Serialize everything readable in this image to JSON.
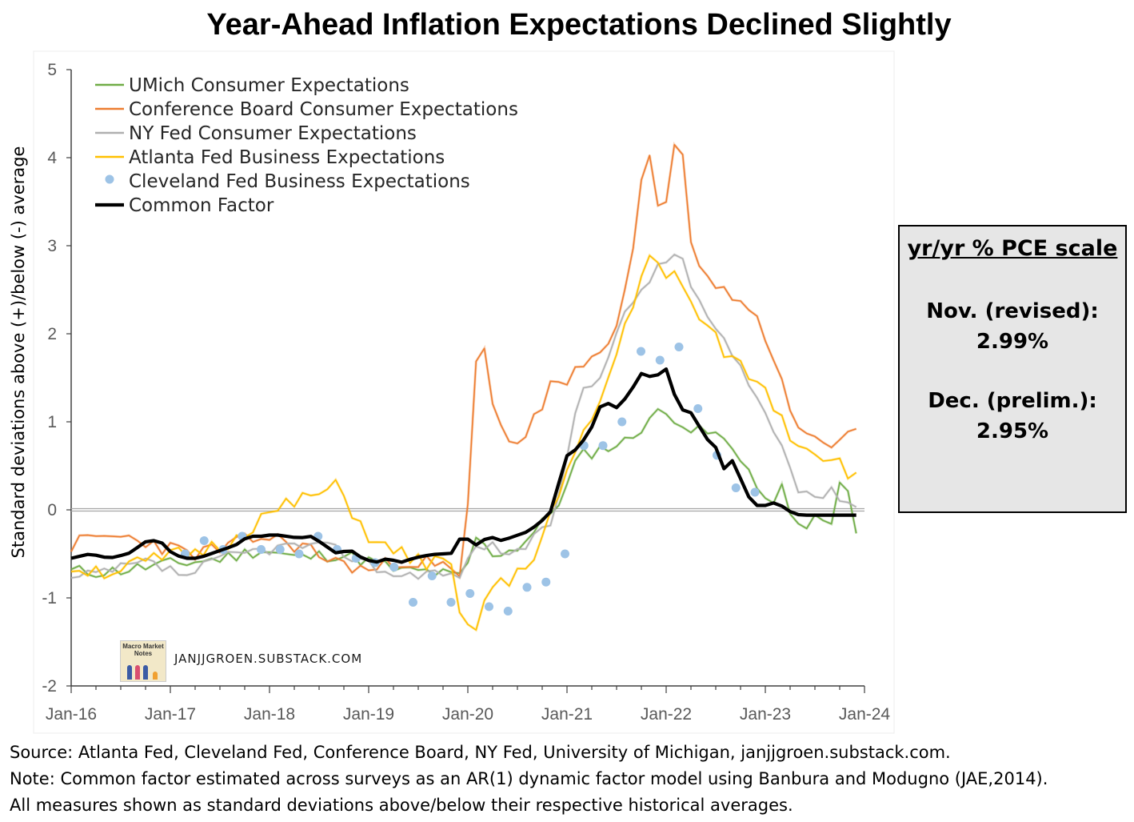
{
  "title": "Year-Ahead Inflation Expectations Declined Slightly",
  "ylabel": "Standard deviations above (+)/below (-) average",
  "info_box": {
    "heading": "yr/yr % PCE scale",
    "label1": "Nov. (revised):",
    "value1": "2.99%",
    "label2": "Dec. (prelim.):",
    "value2": "2.95%"
  },
  "source_lines": [
    "Source: Atlanta Fed, Cleveland Fed, Conference Board, NY Fed, University of Michigan, janjjgroen.substack.com.",
    "Note: Common factor estimated  across surveys as an AR(1) dynamic factor model using Banbura and Modugno (JAE,2014).",
    "All measures shown as standard deviations above/below their respective historical averages."
  ],
  "watermark": "JANJJGROEN.SUBSTACK.COM",
  "logo_text": "Macro Market Notes",
  "chart_data": {
    "type": "line",
    "title": "Year-Ahead Inflation Expectations Declined Slightly",
    "ylabel": "Standard deviations above (+)/below (-) average",
    "xlabel": "",
    "ylim": [
      -2,
      5
    ],
    "yticks": [
      "-2",
      "-1",
      "0",
      "1",
      "2",
      "3",
      "4",
      "5"
    ],
    "xticks": [
      "Jan-16",
      "Jan-17",
      "Jan-18",
      "Jan-19",
      "Jan-20",
      "Jan-21",
      "Jan-22",
      "Jan-23",
      "Jan-24"
    ],
    "x_start": "2016-01",
    "legend_position": "top-left",
    "grid": false,
    "series": [
      {
        "name": "UMich Consumer Expectations",
        "color": "#70ad47",
        "style": "line",
        "knots": [
          [
            0,
            -0.7
          ],
          [
            6,
            -0.7
          ],
          [
            12,
            -0.65
          ],
          [
            18,
            -0.6
          ],
          [
            24,
            -0.55
          ],
          [
            30,
            -0.45
          ],
          [
            36,
            -0.55
          ],
          [
            42,
            -0.5
          ],
          [
            48,
            -0.6
          ],
          [
            52,
            -0.7
          ],
          [
            56,
            -0.7
          ],
          [
            60,
            -0.75
          ],
          [
            62,
            -0.78
          ],
          [
            64,
            -0.3
          ],
          [
            66,
            -0.5
          ],
          [
            70,
            -0.45
          ],
          [
            74,
            -0.2
          ],
          [
            76,
            0.0
          ],
          [
            78,
            0.2
          ],
          [
            80,
            0.6
          ],
          [
            84,
            0.7
          ],
          [
            88,
            0.78
          ],
          [
            92,
            1.1
          ],
          [
            96,
            1.05
          ],
          [
            98,
            0.9
          ],
          [
            102,
            0.85
          ],
          [
            106,
            0.6
          ],
          [
            108,
            0.3
          ],
          [
            110,
            0.0
          ],
          [
            112,
            0.3
          ],
          [
            114,
            -0.2
          ],
          [
            118,
            -0.1
          ],
          [
            120,
            -0.2
          ],
          [
            122,
            0.5
          ],
          [
            124,
            -0.3
          ]
        ],
        "noise": 0.08
      },
      {
        "name": "Conference Board Consumer Expectations",
        "color": "#ed7d31",
        "style": "line",
        "knots": [
          [
            0,
            -0.4
          ],
          [
            6,
            -0.3
          ],
          [
            12,
            -0.35
          ],
          [
            18,
            -0.5
          ],
          [
            24,
            -0.45
          ],
          [
            30,
            -0.3
          ],
          [
            36,
            -0.4
          ],
          [
            42,
            -0.6
          ],
          [
            48,
            -0.7
          ],
          [
            52,
            -0.55
          ],
          [
            56,
            -0.6
          ],
          [
            60,
            -0.7
          ],
          [
            62,
            -0.8
          ],
          [
            64,
            1.7
          ],
          [
            65,
            1.9
          ],
          [
            67,
            1.1
          ],
          [
            70,
            0.7
          ],
          [
            72,
            0.9
          ],
          [
            74,
            1.1
          ],
          [
            76,
            1.5
          ],
          [
            78,
            1.3
          ],
          [
            80,
            1.6
          ],
          [
            84,
            1.8
          ],
          [
            88,
            2.5
          ],
          [
            91,
            4.3
          ],
          [
            92,
            3.5
          ],
          [
            93,
            3.3
          ],
          [
            94,
            3.5
          ],
          [
            96,
            4.4
          ],
          [
            98,
            3.0
          ],
          [
            102,
            2.5
          ],
          [
            106,
            2.4
          ],
          [
            108,
            2.2
          ],
          [
            112,
            1.6
          ],
          [
            114,
            0.9
          ],
          [
            118,
            0.85
          ],
          [
            120,
            0.7
          ],
          [
            122,
            0.9
          ],
          [
            124,
            0.85
          ]
        ],
        "noise": 0.1
      },
      {
        "name": "NY Fed Consumer Expectations",
        "color": "#b0b0b0",
        "style": "line",
        "knots": [
          [
            0,
            -0.8
          ],
          [
            6,
            -0.7
          ],
          [
            12,
            -0.6
          ],
          [
            18,
            -0.75
          ],
          [
            24,
            -0.55
          ],
          [
            30,
            -0.45
          ],
          [
            36,
            -0.4
          ],
          [
            42,
            -0.45
          ],
          [
            48,
            -0.65
          ],
          [
            52,
            -0.75
          ],
          [
            56,
            -0.7
          ],
          [
            60,
            -0.75
          ],
          [
            62,
            -0.7
          ],
          [
            64,
            -0.4
          ],
          [
            66,
            -0.4
          ],
          [
            70,
            -0.5
          ],
          [
            74,
            -0.3
          ],
          [
            76,
            -0.1
          ],
          [
            78,
            0.4
          ],
          [
            80,
            1.3
          ],
          [
            84,
            1.6
          ],
          [
            88,
            2.3
          ],
          [
            92,
            2.7
          ],
          [
            94,
            2.8
          ],
          [
            96,
            3.0
          ],
          [
            98,
            2.5
          ],
          [
            102,
            2.0
          ],
          [
            106,
            1.6
          ],
          [
            108,
            1.3
          ],
          [
            112,
            0.8
          ],
          [
            114,
            0.3
          ],
          [
            118,
            0.15
          ],
          [
            120,
            0.2
          ],
          [
            122,
            0.15
          ],
          [
            124,
            0.05
          ]
        ],
        "noise": 0.07
      },
      {
        "name": "Atlanta Fed Business Expectations",
        "color": "#ffc000",
        "style": "line",
        "knots": [
          [
            0,
            -0.65
          ],
          [
            6,
            -0.7
          ],
          [
            12,
            -0.6
          ],
          [
            18,
            -0.5
          ],
          [
            24,
            -0.4
          ],
          [
            30,
            -0.1
          ],
          [
            36,
            0.1
          ],
          [
            42,
            0.25
          ],
          [
            48,
            -0.4
          ],
          [
            52,
            -0.5
          ],
          [
            56,
            -0.6
          ],
          [
            60,
            -0.65
          ],
          [
            62,
            -1.45
          ],
          [
            64,
            -1.3
          ],
          [
            66,
            -0.9
          ],
          [
            70,
            -0.8
          ],
          [
            74,
            -0.4
          ],
          [
            76,
            0.0
          ],
          [
            78,
            0.3
          ],
          [
            80,
            0.7
          ],
          [
            84,
            1.3
          ],
          [
            88,
            2.2
          ],
          [
            91,
            2.9
          ],
          [
            94,
            2.6
          ],
          [
            96,
            2.7
          ],
          [
            98,
            2.3
          ],
          [
            102,
            1.9
          ],
          [
            106,
            1.6
          ],
          [
            108,
            1.5
          ],
          [
            112,
            1.1
          ],
          [
            114,
            0.8
          ],
          [
            118,
            0.65
          ],
          [
            120,
            0.6
          ],
          [
            122,
            0.5
          ],
          [
            124,
            0.35
          ]
        ],
        "noise": 0.1
      },
      {
        "name": "Cleveland Fed Business Expectations",
        "color": "#9dc3e6",
        "style": "dots",
        "points": [
          [
            18,
            -0.5
          ],
          [
            21,
            -0.35
          ],
          [
            24,
            -0.45
          ],
          [
            27,
            -0.3
          ],
          [
            30,
            -0.45
          ],
          [
            33,
            -0.45
          ],
          [
            36,
            -0.5
          ],
          [
            39,
            -0.3
          ],
          [
            42,
            -0.45
          ],
          [
            45,
            -0.55
          ],
          [
            48,
            -0.6
          ],
          [
            51,
            -0.65
          ],
          [
            54,
            -1.05
          ],
          [
            57,
            -0.75
          ],
          [
            60,
            -1.05
          ],
          [
            63,
            -0.95
          ],
          [
            66,
            -1.1
          ],
          [
            69,
            -1.15
          ],
          [
            72,
            -0.88
          ],
          [
            75,
            -0.82
          ],
          [
            78,
            -0.5
          ],
          [
            81,
            0.73
          ],
          [
            84,
            0.73
          ],
          [
            87,
            1.0
          ],
          [
            90,
            1.8
          ],
          [
            93,
            1.7
          ],
          [
            96,
            1.85
          ],
          [
            99,
            1.15
          ],
          [
            102,
            0.62
          ],
          [
            105,
            0.25
          ],
          [
            108,
            0.2
          ]
        ],
        "x_offset_months": 0
      },
      {
        "name": "Common Factor",
        "color": "#000000",
        "style": "line",
        "knots": [
          [
            0,
            -0.55
          ],
          [
            3,
            -0.5
          ],
          [
            6,
            -0.55
          ],
          [
            9,
            -0.5
          ],
          [
            12,
            -0.35
          ],
          [
            14,
            -0.35
          ],
          [
            16,
            -0.5
          ],
          [
            18,
            -0.55
          ],
          [
            20,
            -0.55
          ],
          [
            22,
            -0.5
          ],
          [
            24,
            -0.45
          ],
          [
            26,
            -0.4
          ],
          [
            28,
            -0.3
          ],
          [
            30,
            -0.3
          ],
          [
            32,
            -0.28
          ],
          [
            34,
            -0.3
          ],
          [
            36,
            -0.32
          ],
          [
            38,
            -0.3
          ],
          [
            40,
            -0.4
          ],
          [
            42,
            -0.5
          ],
          [
            44,
            -0.45
          ],
          [
            46,
            -0.55
          ],
          [
            48,
            -0.6
          ],
          [
            50,
            -0.55
          ],
          [
            52,
            -0.6
          ],
          [
            54,
            -0.55
          ],
          [
            56,
            -0.52
          ],
          [
            58,
            -0.5
          ],
          [
            60,
            -0.5
          ],
          [
            61,
            -0.35
          ],
          [
            62,
            -0.3
          ],
          [
            64,
            -0.4
          ],
          [
            66,
            -0.3
          ],
          [
            68,
            -0.35
          ],
          [
            70,
            -0.3
          ],
          [
            72,
            -0.25
          ],
          [
            74,
            -0.15
          ],
          [
            76,
            0.0
          ],
          [
            77,
            0.3
          ],
          [
            78,
            0.6
          ],
          [
            80,
            0.7
          ],
          [
            82,
            0.9
          ],
          [
            84,
            1.25
          ],
          [
            86,
            1.15
          ],
          [
            88,
            1.3
          ],
          [
            90,
            1.55
          ],
          [
            92,
            1.5
          ],
          [
            94,
            1.6
          ],
          [
            96,
            1.15
          ],
          [
            98,
            1.1
          ],
          [
            100,
            0.85
          ],
          [
            101,
            0.75
          ],
          [
            102,
            0.7
          ],
          [
            103,
            0.45
          ],
          [
            104,
            0.6
          ],
          [
            105,
            0.5
          ],
          [
            106,
            0.3
          ],
          [
            107,
            0.15
          ],
          [
            108,
            0.05
          ],
          [
            110,
            0.05
          ],
          [
            111,
            0.08
          ],
          [
            112,
            0.05
          ],
          [
            113,
            0.02
          ],
          [
            114,
            -0.05
          ],
          [
            116,
            -0.06
          ]
        ],
        "noise": 0.0
      }
    ]
  }
}
